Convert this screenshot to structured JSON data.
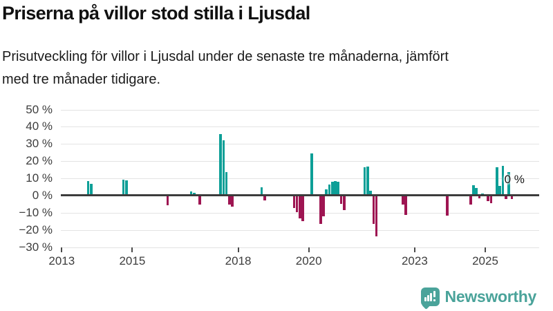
{
  "title": "Priserna på villor stod stilla i Ljusdal",
  "subtitle_lines": [
    "Prisutveckling för villor i Ljusdal under de senaste tre månaderna, jämfört",
    "med tre månader tidigare."
  ],
  "colors": {
    "positive_bar": "#0d9f97",
    "negative_bar": "#9e1552",
    "grid": "#e3e3e3",
    "zero_line": "#3c3c3c",
    "axis_text": "#3d3d3d",
    "logo_teal": "#4aa39a"
  },
  "logo": {
    "name": "Newsworthy",
    "icon": "speech-bubble-bar-chart-icon"
  },
  "chart_data": {
    "type": "bar",
    "title": "Priserna på villor stod stilla i Ljusdal",
    "subtitle": "Prisutveckling för villor i Ljusdal under de senaste tre månaderna, jämfört med tre månader tidigare.",
    "unit": "%",
    "ylim": [
      -30,
      50
    ],
    "grid": true,
    "y_ticks": [
      50,
      40,
      30,
      20,
      10,
      0,
      -10,
      -20,
      -30
    ],
    "y_tick_labels": [
      "50 %",
      "40 %",
      "30 %",
      "20 %",
      "10 %",
      "0 %",
      "−10 %",
      "−20 %",
      "−30 %"
    ],
    "x_ticks": [
      2013,
      2015,
      2018,
      2020,
      2023,
      2025
    ],
    "x_range_years": [
      2013.0,
      2026.5
    ],
    "annotation": {
      "month": "2025-11",
      "label": "0 %",
      "value": 0
    },
    "series": [
      {
        "month": "2013-10",
        "value": 8.3
      },
      {
        "month": "2013-11",
        "value": 6.7
      },
      {
        "month": "2014-10",
        "value": 9.1
      },
      {
        "month": "2014-11",
        "value": 8.7
      },
      {
        "month": "2016-01",
        "value": -5.6
      },
      {
        "month": "2016-09",
        "value": 2.6
      },
      {
        "month": "2016-10",
        "value": 1.7
      },
      {
        "month": "2016-12",
        "value": -5.2
      },
      {
        "month": "2017-07",
        "value": 35.8
      },
      {
        "month": "2017-08",
        "value": 32.0
      },
      {
        "month": "2017-09",
        "value": 13.7
      },
      {
        "month": "2017-10",
        "value": -5.1
      },
      {
        "month": "2017-11",
        "value": -6.6
      },
      {
        "month": "2018-09",
        "value": 5.0
      },
      {
        "month": "2018-10",
        "value": -2.9
      },
      {
        "month": "2019-08",
        "value": -7.3
      },
      {
        "month": "2019-09",
        "value": -9.6
      },
      {
        "month": "2019-10",
        "value": -13.1
      },
      {
        "month": "2019-11",
        "value": -15.0
      },
      {
        "month": "2020-02",
        "value": 24.6
      },
      {
        "month": "2020-05",
        "value": -16.6
      },
      {
        "month": "2020-06",
        "value": -12.0
      },
      {
        "month": "2020-07",
        "value": 3.7
      },
      {
        "month": "2020-08",
        "value": 6.6
      },
      {
        "month": "2020-09",
        "value": 8.1
      },
      {
        "month": "2020-10",
        "value": 8.5
      },
      {
        "month": "2020-11",
        "value": 8.1
      },
      {
        "month": "2020-12",
        "value": -4.6
      },
      {
        "month": "2021-01",
        "value": -8.6
      },
      {
        "month": "2021-08",
        "value": 16.6
      },
      {
        "month": "2021-09",
        "value": 16.8
      },
      {
        "month": "2021-10",
        "value": 2.7
      },
      {
        "month": "2021-11",
        "value": -16.6
      },
      {
        "month": "2021-12",
        "value": -23.5
      },
      {
        "month": "2022-09",
        "value": -5.3
      },
      {
        "month": "2022-10",
        "value": -11.2
      },
      {
        "month": "2022-11",
        "value": 0.8
      },
      {
        "month": "2023-12",
        "value": -11.8
      },
      {
        "month": "2024-08",
        "value": -5.2
      },
      {
        "month": "2024-09",
        "value": 6.2
      },
      {
        "month": "2024-10",
        "value": 4.4
      },
      {
        "month": "2024-11",
        "value": -1.5
      },
      {
        "month": "2024-12",
        "value": 1.3
      },
      {
        "month": "2025-01",
        "value": 0.7
      },
      {
        "month": "2025-02",
        "value": -3.3
      },
      {
        "month": "2025-03",
        "value": -4.3
      },
      {
        "month": "2025-05",
        "value": 16.4
      },
      {
        "month": "2025-06",
        "value": 5.5
      },
      {
        "month": "2025-07",
        "value": 17.3
      },
      {
        "month": "2025-08",
        "value": -1.8
      },
      {
        "month": "2025-09",
        "value": 13.5
      },
      {
        "month": "2025-10",
        "value": -1.8
      },
      {
        "month": "2025-11",
        "value": 0.0
      }
    ]
  }
}
